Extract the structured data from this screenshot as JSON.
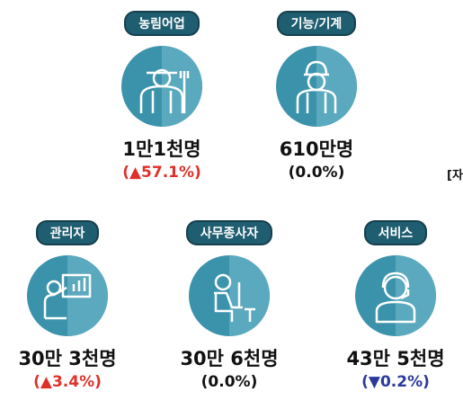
{
  "items": [
    {
      "label": "농림어업",
      "amount": "1만1천명",
      "change": "(▲57.1%)",
      "trend": "up"
    },
    {
      "label": "기능/기계",
      "amount": "610만명",
      "change": "(0.0%)",
      "trend": "flat"
    },
    {
      "label": "관리자",
      "amount": "30만 3천명",
      "change": "(▲3.4%)",
      "trend": "up"
    },
    {
      "label": "사무종사자",
      "amount": "30만 6천명",
      "change": "(0.0%)",
      "trend": "flat"
    },
    {
      "label": "서비스",
      "amount": "43만 5천명",
      "change": "(▼0.2%)",
      "trend": "down"
    }
  ],
  "side_note": "[자"
}
